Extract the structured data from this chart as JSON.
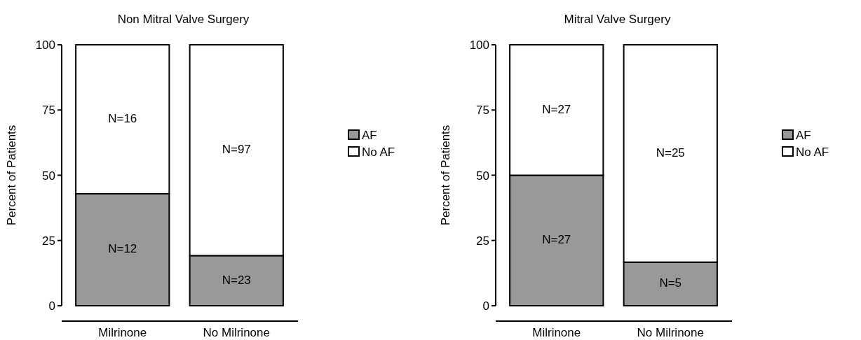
{
  "chart_data": [
    {
      "type": "bar",
      "title": "Non Mitral Valve Surgery",
      "ylabel": "Percent of Patients",
      "categories": [
        "Milrinone",
        "No Milrinone"
      ],
      "stacked": true,
      "ylim": [
        0,
        100
      ],
      "yticks": [
        0,
        25,
        50,
        75,
        100
      ],
      "legend": "right",
      "series": [
        {
          "name": "AF",
          "color": "#999999",
          "values": [
            42.9,
            19.2
          ]
        },
        {
          "name": "No AF",
          "color": "#ffffff",
          "values": [
            57.1,
            80.8
          ]
        }
      ],
      "annotations": [
        "N=12",
        "N=16",
        "N=23",
        "N=97"
      ]
    },
    {
      "type": "bar",
      "title": "Mitral Valve Surgery",
      "ylabel": "Percent of Patients",
      "categories": [
        "Milrinone",
        "No Milrinone"
      ],
      "stacked": true,
      "ylim": [
        0,
        100
      ],
      "yticks": [
        0,
        25,
        50,
        75,
        100
      ],
      "legend": "right",
      "series": [
        {
          "name": "AF",
          "color": "#999999",
          "values": [
            50,
            16.7
          ]
        },
        {
          "name": "No AF",
          "color": "#ffffff",
          "values": [
            50,
            83.3
          ]
        }
      ],
      "annotations": [
        "N=27",
        "N=27",
        "N=5",
        "N=25"
      ]
    }
  ]
}
